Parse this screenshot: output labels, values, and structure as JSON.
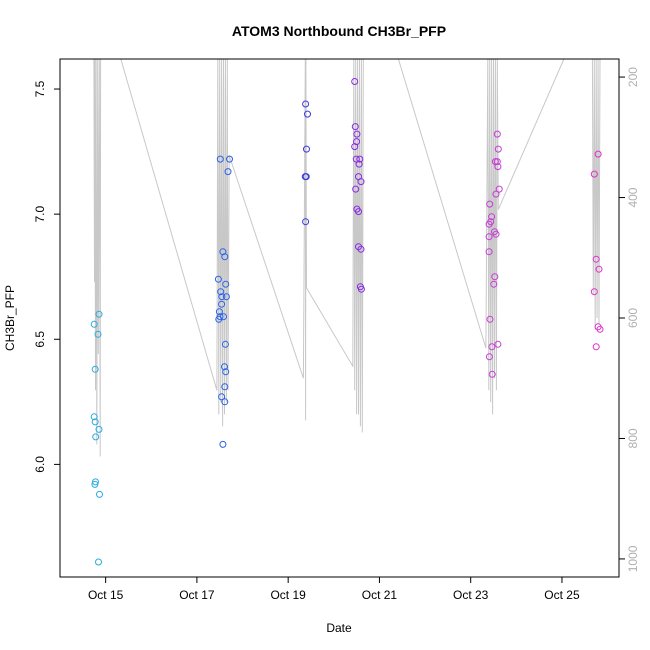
{
  "chart_data": {
    "type": "scatter",
    "title": "ATOM3 Northbound CH3Br_PFP",
    "xlabel": "Date",
    "ylabel": "CH3Br_PFP",
    "x_unit": "date",
    "xlim": [
      "2016-10-14T00:00",
      "2016-10-26T06:00"
    ],
    "ylim": [
      5.55,
      7.62
    ],
    "x_ticks": [
      {
        "value": "2016-10-15T00:00",
        "label": "Oct 15"
      },
      {
        "value": "2016-10-17T00:00",
        "label": "Oct 17"
      },
      {
        "value": "2016-10-19T00:00",
        "label": "Oct 19"
      },
      {
        "value": "2016-10-21T00:00",
        "label": "Oct 21"
      },
      {
        "value": "2016-10-23T00:00",
        "label": "Oct 23"
      },
      {
        "value": "2016-10-25T00:00",
        "label": "Oct 25"
      }
    ],
    "y_ticks": [
      {
        "value": 6.0,
        "label": "6.0"
      },
      {
        "value": 6.5,
        "label": "6.5"
      },
      {
        "value": 7.0,
        "label": "7.0"
      },
      {
        "value": 7.5,
        "label": "7.5"
      }
    ],
    "y2_axis": {
      "reversed": true,
      "ylim": [
        1030,
        170
      ],
      "ticks": [
        {
          "value": 200,
          "label": "200"
        },
        {
          "value": 400,
          "label": "400"
        },
        {
          "value": 600,
          "label": "600"
        },
        {
          "value": 800,
          "label": "800"
        },
        {
          "value": 1000,
          "label": "1000"
        }
      ],
      "color": "#b0b0b0"
    },
    "grid": false,
    "legend": "none",
    "marker": "open-circle",
    "points": [
      {
        "x": "2016-10-14T18:00",
        "y": 6.56,
        "color": "#29abe2"
      },
      {
        "x": "2016-10-14T18:30",
        "y": 6.38,
        "color": "#29abe2"
      },
      {
        "x": "2016-10-14T18:00",
        "y": 6.19,
        "color": "#29abe2"
      },
      {
        "x": "2016-10-14T18:30",
        "y": 6.17,
        "color": "#29abe2"
      },
      {
        "x": "2016-10-14T18:45",
        "y": 6.11,
        "color": "#29abe2"
      },
      {
        "x": "2016-10-14T20:30",
        "y": 6.6,
        "color": "#29abe2"
      },
      {
        "x": "2016-10-14T20:00",
        "y": 6.52,
        "color": "#29abe2"
      },
      {
        "x": "2016-10-14T20:30",
        "y": 6.14,
        "color": "#29abe2"
      },
      {
        "x": "2016-10-14T18:40",
        "y": 5.93,
        "color": "#29abe2"
      },
      {
        "x": "2016-10-14T18:20",
        "y": 5.92,
        "color": "#29abe2"
      },
      {
        "x": "2016-10-14T20:45",
        "y": 5.88,
        "color": "#29abe2"
      },
      {
        "x": "2016-10-14T20:15",
        "y": 5.61,
        "color": "#29abe2"
      },
      {
        "x": "2016-10-17T11:20",
        "y": 6.74,
        "color": "#2a62e8"
      },
      {
        "x": "2016-10-17T11:50",
        "y": 6.61,
        "color": "#2a62e8"
      },
      {
        "x": "2016-10-17T11:30",
        "y": 6.58,
        "color": "#2a62e8"
      },
      {
        "x": "2016-10-17T12:10",
        "y": 6.59,
        "color": "#2a62e8"
      },
      {
        "x": "2016-10-17T12:30",
        "y": 6.69,
        "color": "#2a62e8"
      },
      {
        "x": "2016-10-17T13:10",
        "y": 6.67,
        "color": "#2a62e8"
      },
      {
        "x": "2016-10-17T13:00",
        "y": 6.64,
        "color": "#2a62e8"
      },
      {
        "x": "2016-10-17T14:00",
        "y": 6.59,
        "color": "#2a62e8"
      },
      {
        "x": "2016-10-17T13:40",
        "y": 6.85,
        "color": "#2a62e8"
      },
      {
        "x": "2016-10-17T14:40",
        "y": 6.83,
        "color": "#2a62e8"
      },
      {
        "x": "2016-10-17T12:20",
        "y": 7.22,
        "color": "#2a62e8"
      },
      {
        "x": "2016-10-17T13:00",
        "y": 6.27,
        "color": "#2a62e8"
      },
      {
        "x": "2016-10-17T14:30",
        "y": 6.39,
        "color": "#2a62e8"
      },
      {
        "x": "2016-10-17T15:10",
        "y": 6.37,
        "color": "#2a62e8"
      },
      {
        "x": "2016-10-17T15:00",
        "y": 6.48,
        "color": "#2a62e8"
      },
      {
        "x": "2016-10-17T14:40",
        "y": 6.31,
        "color": "#2a62e8"
      },
      {
        "x": "2016-10-17T14:40",
        "y": 6.25,
        "color": "#2a62e8"
      },
      {
        "x": "2016-10-17T15:30",
        "y": 6.67,
        "color": "#2a62e8"
      },
      {
        "x": "2016-10-17T15:10",
        "y": 6.72,
        "color": "#2a62e8"
      },
      {
        "x": "2016-10-17T13:40",
        "y": 6.08,
        "color": "#2a62e8"
      },
      {
        "x": "2016-10-17T16:20",
        "y": 7.17,
        "color": "#2a62e8"
      },
      {
        "x": "2016-10-17T17:10",
        "y": 7.22,
        "color": "#2a62e8"
      },
      {
        "x": "2016-10-19T09:10",
        "y": 7.44,
        "color": "#3a3ae0"
      },
      {
        "x": "2016-10-19T10:10",
        "y": 7.4,
        "color": "#3a3ae0"
      },
      {
        "x": "2016-10-19T09:40",
        "y": 7.26,
        "color": "#3a3ae0"
      },
      {
        "x": "2016-10-19T09:00",
        "y": 7.15,
        "color": "#3a3ae0"
      },
      {
        "x": "2016-10-19T09:30",
        "y": 7.15,
        "color": "#3a3ae0"
      },
      {
        "x": "2016-10-19T09:10",
        "y": 6.97,
        "color": "#3a3ae0"
      },
      {
        "x": "2016-10-20T11:00",
        "y": 7.53,
        "color": "#8a2be2"
      },
      {
        "x": "2016-10-20T11:20",
        "y": 7.35,
        "color": "#8a2be2"
      },
      {
        "x": "2016-10-20T12:10",
        "y": 7.32,
        "color": "#8a2be2"
      },
      {
        "x": "2016-10-20T11:00",
        "y": 7.27,
        "color": "#8a2be2"
      },
      {
        "x": "2016-10-20T12:00",
        "y": 7.29,
        "color": "#8a2be2"
      },
      {
        "x": "2016-10-20T11:50",
        "y": 7.22,
        "color": "#8a2be2"
      },
      {
        "x": "2016-10-20T13:40",
        "y": 7.22,
        "color": "#8a2be2"
      },
      {
        "x": "2016-10-20T13:20",
        "y": 7.2,
        "color": "#8a2be2"
      },
      {
        "x": "2016-10-20T13:00",
        "y": 7.15,
        "color": "#8a2be2"
      },
      {
        "x": "2016-10-20T14:20",
        "y": 7.13,
        "color": "#8a2be2"
      },
      {
        "x": "2016-10-20T11:30",
        "y": 7.1,
        "color": "#8a2be2"
      },
      {
        "x": "2016-10-20T12:10",
        "y": 7.02,
        "color": "#8a2be2"
      },
      {
        "x": "2016-10-20T13:00",
        "y": 7.01,
        "color": "#8a2be2"
      },
      {
        "x": "2016-10-20T13:00",
        "y": 6.87,
        "color": "#8a2be2"
      },
      {
        "x": "2016-10-20T14:20",
        "y": 6.86,
        "color": "#8a2be2"
      },
      {
        "x": "2016-10-20T14:00",
        "y": 6.71,
        "color": "#8a2be2"
      },
      {
        "x": "2016-10-20T14:30",
        "y": 6.7,
        "color": "#8a2be2"
      },
      {
        "x": "2016-10-23T10:00",
        "y": 7.04,
        "color": "#c83cd6"
      },
      {
        "x": "2016-10-23T09:40",
        "y": 6.96,
        "color": "#c83cd6"
      },
      {
        "x": "2016-10-23T10:30",
        "y": 6.97,
        "color": "#c83cd6"
      },
      {
        "x": "2016-10-23T11:00",
        "y": 6.99,
        "color": "#c83cd6"
      },
      {
        "x": "2016-10-23T09:40",
        "y": 6.91,
        "color": "#c83cd6"
      },
      {
        "x": "2016-10-23T09:40",
        "y": 6.85,
        "color": "#c83cd6"
      },
      {
        "x": "2016-10-23T14:00",
        "y": 7.32,
        "color": "#c83cd6"
      },
      {
        "x": "2016-10-23T14:30",
        "y": 7.26,
        "color": "#c83cd6"
      },
      {
        "x": "2016-10-23T13:00",
        "y": 7.21,
        "color": "#c83cd6"
      },
      {
        "x": "2016-10-23T14:00",
        "y": 7.21,
        "color": "#c83cd6"
      },
      {
        "x": "2016-10-23T14:20",
        "y": 7.19,
        "color": "#c83cd6"
      },
      {
        "x": "2016-10-23T15:00",
        "y": 7.1,
        "color": "#c83cd6"
      },
      {
        "x": "2016-10-23T13:20",
        "y": 7.08,
        "color": "#c83cd6"
      },
      {
        "x": "2016-10-23T12:30",
        "y": 6.93,
        "color": "#c83cd6"
      },
      {
        "x": "2016-10-23T13:20",
        "y": 6.92,
        "color": "#c83cd6"
      },
      {
        "x": "2016-10-23T12:40",
        "y": 6.75,
        "color": "#c83cd6"
      },
      {
        "x": "2016-10-23T12:10",
        "y": 6.72,
        "color": "#c83cd6"
      },
      {
        "x": "2016-10-23T10:10",
        "y": 6.58,
        "color": "#c83cd6"
      },
      {
        "x": "2016-10-23T09:50",
        "y": 6.43,
        "color": "#c83cd6"
      },
      {
        "x": "2016-10-23T11:10",
        "y": 6.47,
        "color": "#c83cd6"
      },
      {
        "x": "2016-10-23T14:20",
        "y": 6.48,
        "color": "#c83cd6"
      },
      {
        "x": "2016-10-23T11:20",
        "y": 6.36,
        "color": "#c83cd6"
      },
      {
        "x": "2016-10-25T17:00",
        "y": 7.16,
        "color": "#e030c8"
      },
      {
        "x": "2016-10-25T19:00",
        "y": 7.24,
        "color": "#e030c8"
      },
      {
        "x": "2016-10-25T18:00",
        "y": 6.82,
        "color": "#e030c8"
      },
      {
        "x": "2016-10-25T19:30",
        "y": 6.78,
        "color": "#e030c8"
      },
      {
        "x": "2016-10-25T17:00",
        "y": 6.69,
        "color": "#e030c8"
      },
      {
        "x": "2016-10-25T19:00",
        "y": 6.55,
        "color": "#e030c8"
      },
      {
        "x": "2016-10-25T20:00",
        "y": 6.54,
        "color": "#e030c8"
      },
      {
        "x": "2016-10-25T18:00",
        "y": 6.47,
        "color": "#e030c8"
      }
    ],
    "altitude_trace": {
      "color": "#c8c8c8",
      "points": [
        [
          "2016-10-14T17:50",
          170
        ],
        [
          "2016-10-14T18:10",
          540
        ],
        [
          "2016-10-14T18:20",
          170
        ],
        [
          "2016-10-14T18:40",
          720
        ],
        [
          "2016-10-14T19:00",
          170
        ],
        [
          "2016-10-14T19:20",
          810
        ],
        [
          "2016-10-14T19:50",
          170
        ],
        [
          "2016-10-14T20:10",
          660
        ],
        [
          "2016-10-14T20:40",
          170
        ],
        [
          "2016-10-14T21:10",
          830
        ],
        [
          "2016-10-14T21:20",
          170
        ],
        [
          "2016-10-15T08:00",
          170
        ],
        [
          "2016-10-17T10:30",
          720
        ],
        [
          "2016-10-17T11:00",
          170
        ],
        [
          "2016-10-17T11:30",
          760
        ],
        [
          "2016-10-17T12:00",
          170
        ],
        [
          "2016-10-17T12:30",
          740
        ],
        [
          "2016-10-17T13:00",
          170
        ],
        [
          "2016-10-17T13:30",
          780
        ],
        [
          "2016-10-17T14:00",
          170
        ],
        [
          "2016-10-17T14:30",
          760
        ],
        [
          "2016-10-17T15:00",
          170
        ],
        [
          "2016-10-17T15:30",
          740
        ],
        [
          "2016-10-17T16:00",
          170
        ],
        [
          "2016-10-17T16:20",
          720
        ],
        [
          "2016-10-17T17:00",
          330
        ],
        [
          "2016-10-19T08:00",
          700
        ],
        [
          "2016-10-19T09:00",
          170
        ],
        [
          "2016-10-19T09:10",
          770
        ],
        [
          "2016-10-19T09:20",
          170
        ],
        [
          "2016-10-19T09:40",
          550
        ],
        [
          "2016-10-20T10:00",
          680
        ],
        [
          "2016-10-20T10:30",
          170
        ],
        [
          "2016-10-20T11:00",
          720
        ],
        [
          "2016-10-20T11:30",
          170
        ],
        [
          "2016-10-20T12:00",
          760
        ],
        [
          "2016-10-20T12:30",
          170
        ],
        [
          "2016-10-20T13:00",
          760
        ],
        [
          "2016-10-20T13:30",
          170
        ],
        [
          "2016-10-20T14:00",
          780
        ],
        [
          "2016-10-20T14:30",
          170
        ],
        [
          "2016-10-20T15:00",
          790
        ],
        [
          "2016-10-20T15:30",
          170
        ],
        [
          "2016-10-21T10:00",
          170
        ],
        [
          "2016-10-23T08:00",
          650
        ],
        [
          "2016-10-23T09:00",
          170
        ],
        [
          "2016-10-23T09:30",
          720
        ],
        [
          "2016-10-23T10:00",
          170
        ],
        [
          "2016-10-23T10:30",
          740
        ],
        [
          "2016-10-23T11:00",
          170
        ],
        [
          "2016-10-23T11:30",
          760
        ],
        [
          "2016-10-23T12:00",
          170
        ],
        [
          "2016-10-23T12:30",
          700
        ],
        [
          "2016-10-23T13:00",
          170
        ],
        [
          "2016-10-23T13:30",
          720
        ],
        [
          "2016-10-23T14:00",
          170
        ],
        [
          "2016-10-23T14:30",
          420
        ],
        [
          "2016-10-25T01:00",
          170
        ],
        [
          "2016-10-25T16:00",
          170
        ],
        [
          "2016-10-25T16:30",
          560
        ],
        [
          "2016-10-25T17:00",
          170
        ],
        [
          "2016-10-25T17:30",
          620
        ],
        [
          "2016-10-25T18:00",
          170
        ],
        [
          "2016-10-25T18:30",
          600
        ],
        [
          "2016-10-25T19:00",
          170
        ],
        [
          "2016-10-25T19:30",
          610
        ],
        [
          "2016-10-25T20:00",
          170
        ]
      ]
    }
  }
}
